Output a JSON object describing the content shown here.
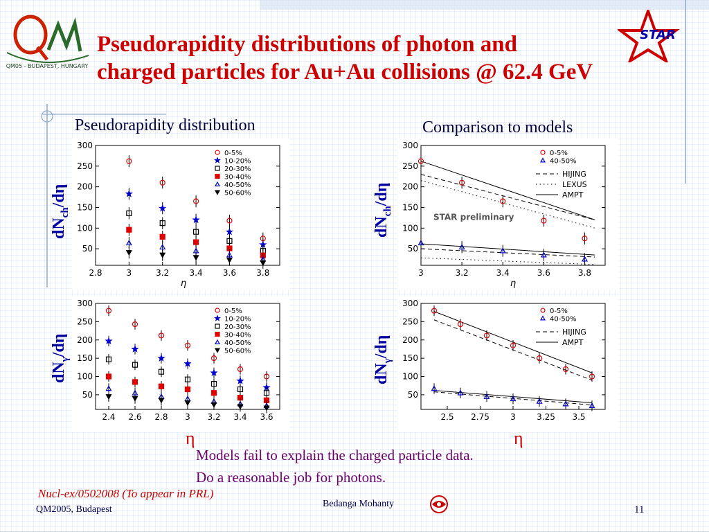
{
  "title": "Pseudorapidity  distributions of photon and\ncharged particles for Au+Au collisions @ 62.4 GeV",
  "logos": {
    "qm": "Q M",
    "qm_caption": "QM05 - BUDAPEST, HUNGARY",
    "star": "STAR"
  },
  "section_left": "Pseudorapidity distribution",
  "section_right": "Comparison to models",
  "ylabel_charged_main": "dN",
  "ylabel_charged_sub": "ch",
  "ylabel_charged_tail": "/dη",
  "ylabel_photon_main": "dN",
  "ylabel_photon_sub": "γ",
  "ylabel_photon_tail": "/dη",
  "eta_symbol": "η",
  "conclusion_line1": "Models fail to explain the charged particle data.",
  "conclusion_line2": "Do a reasonable job for photons.",
  "reference": "Nucl-ex/0502008 (To appear in PRL)",
  "conference": "QM2005, Budapest",
  "presenter": "Bedanga Mohanty",
  "slide_number": "11",
  "colors": {
    "title": "#cc0000",
    "ylabel": "#0000a0",
    "conclusion": "#6a006a",
    "data_red": "#e00000",
    "data_blue": "#0000cc"
  },
  "chart_data": [
    {
      "type": "scatter",
      "xlabel": "η",
      "xlim": [
        2.8,
        3.9
      ],
      "ylim": [
        10,
        300
      ],
      "xticks": [
        "2.8",
        "3",
        "3.2",
        "3.4",
        "3.6",
        "3.8"
      ],
      "yticks": [
        "50",
        "100",
        "150",
        "200",
        "250",
        "300"
      ],
      "x": [
        3.0,
        3.2,
        3.4,
        3.6,
        3.8
      ],
      "legend_position": "top-right",
      "series": [
        {
          "name": "0-5%",
          "values": [
            262,
            210,
            165,
            118,
            75
          ]
        },
        {
          "name": "10-20%",
          "values": [
            183,
            148,
            120,
            91,
            60
          ]
        },
        {
          "name": "20-30%",
          "values": [
            136,
            112,
            91,
            69,
            45
          ]
        },
        {
          "name": "30-40%",
          "values": [
            96,
            79,
            66,
            51,
            34
          ]
        },
        {
          "name": "40-50%",
          "values": [
            64,
            54,
            45,
            35,
            25
          ]
        },
        {
          "name": "50-60%",
          "values": [
            41,
            35,
            29,
            23,
            16
          ]
        }
      ]
    },
    {
      "type": "scatter",
      "xlabel": "η",
      "xlim": [
        3.0,
        3.9
      ],
      "ylim": [
        10,
        300
      ],
      "xticks": [
        "3",
        "3.2",
        "3.4",
        "3.6",
        "3.8"
      ],
      "yticks": [
        "50",
        "100",
        "150",
        "200",
        "250",
        "300"
      ],
      "x": [
        3.0,
        3.2,
        3.4,
        3.6,
        3.8
      ],
      "legend_position": "top-right",
      "annotation": "STAR preliminary",
      "series": [
        {
          "name": "0-5%",
          "values": [
            262,
            210,
            165,
            118,
            75
          ]
        },
        {
          "name": "40-50%",
          "values": [
            64,
            54,
            45,
            35,
            25
          ]
        }
      ],
      "models": [
        {
          "name": "HIJING",
          "style": "dashed",
          "curves": [
            [
              [
                3.0,
                230
              ],
              [
                3.85,
                120
              ]
            ],
            [
              [
                3.0,
                50
              ],
              [
                3.85,
                30
              ]
            ]
          ]
        },
        {
          "name": "LEXUS",
          "style": "dotted",
          "curves": [
            [
              [
                3.0,
                215
              ],
              [
                3.85,
                100
              ]
            ],
            [
              [
                3.0,
                28
              ],
              [
                3.85,
                12
              ]
            ]
          ]
        },
        {
          "name": "AMPT",
          "style": "solid",
          "curves": [
            [
              [
                3.0,
                262
              ],
              [
                3.85,
                120
              ]
            ],
            [
              [
                3.0,
                62
              ],
              [
                3.85,
                35
              ]
            ]
          ]
        }
      ]
    },
    {
      "type": "scatter",
      "xlabel": "η",
      "xlim": [
        2.3,
        3.7
      ],
      "ylim": [
        10,
        300
      ],
      "xticks": [
        "2.4",
        "2.6",
        "2.8",
        "3",
        "3.2",
        "3.4",
        "3.6"
      ],
      "yticks": [
        "50",
        "100",
        "150",
        "200",
        "250",
        "300"
      ],
      "x": [
        2.4,
        2.6,
        2.8,
        3.0,
        3.2,
        3.4,
        3.6
      ],
      "legend_position": "top-right",
      "series": [
        {
          "name": "0-5%",
          "values": [
            280,
            243,
            212,
            185,
            150,
            120,
            100
          ]
        },
        {
          "name": "10-20%",
          "values": [
            197,
            175,
            150,
            135,
            110,
            88,
            70
          ]
        },
        {
          "name": "20-30%",
          "values": [
            147,
            132,
            113,
            92,
            80,
            65,
            55
          ]
        },
        {
          "name": "30-40%",
          "values": [
            100,
            85,
            73,
            65,
            55,
            42,
            35
          ]
        },
        {
          "name": "40-50%",
          "values": [
            67,
            55,
            45,
            39,
            32,
            25,
            20
          ]
        },
        {
          "name": "50-60%",
          "values": [
            45,
            40,
            35,
            28,
            23,
            18,
            14
          ]
        }
      ]
    },
    {
      "type": "scatter",
      "xlabel": "η",
      "xlim": [
        2.3,
        3.7
      ],
      "ylim": [
        10,
        300
      ],
      "xticks": [
        "2.5",
        "2.75",
        "3",
        "3.25",
        "3.5"
      ],
      "yticks": [
        "50",
        "100",
        "150",
        "200",
        "250",
        "300"
      ],
      "x": [
        2.4,
        2.6,
        2.8,
        3.0,
        3.2,
        3.4,
        3.6
      ],
      "legend_position": "top-right",
      "series": [
        {
          "name": "0-5%",
          "values": [
            280,
            243,
            212,
            185,
            150,
            120,
            100
          ]
        },
        {
          "name": "40-50%",
          "values": [
            67,
            55,
            45,
            39,
            32,
            25,
            20
          ]
        }
      ],
      "models": [
        {
          "name": "HIJING",
          "style": "dashed",
          "curves": [
            [
              [
                2.4,
                255
              ],
              [
                3.6,
                90
              ]
            ],
            [
              [
                2.4,
                58
              ],
              [
                3.6,
                22
              ]
            ]
          ]
        },
        {
          "name": "AMPT",
          "style": "solid",
          "curves": [
            [
              [
                2.4,
                278
              ],
              [
                3.6,
                110
              ]
            ],
            [
              [
                2.4,
                62
              ],
              [
                3.6,
                28
              ]
            ]
          ]
        }
      ]
    }
  ]
}
